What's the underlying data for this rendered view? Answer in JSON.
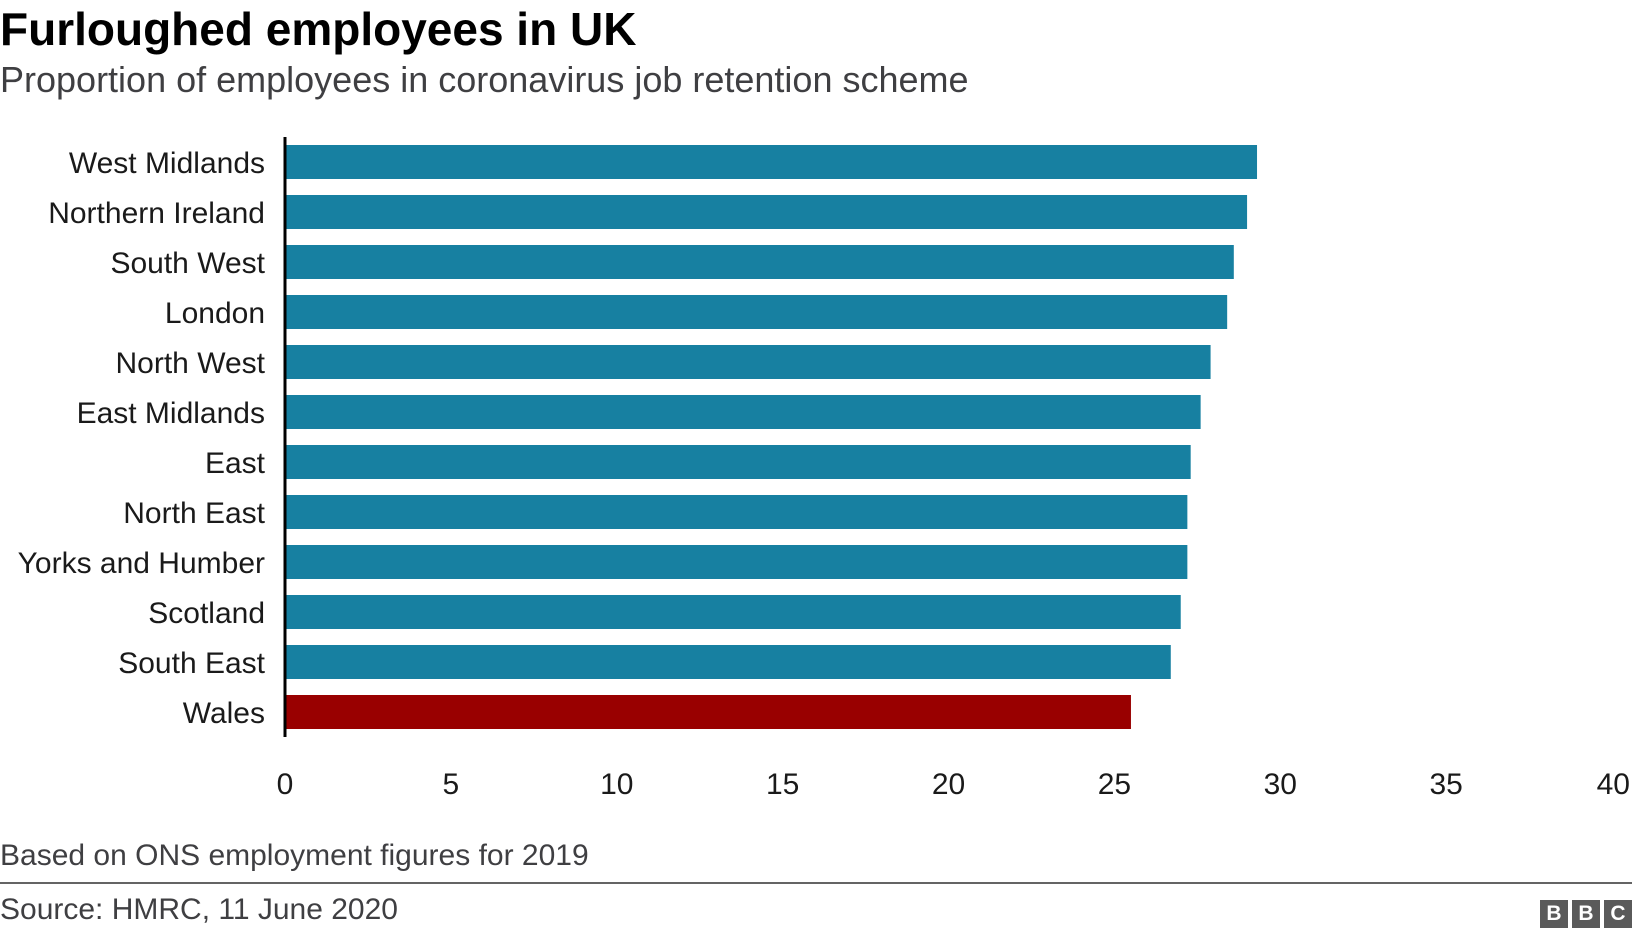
{
  "header": {
    "title": "Furloughed employees in UK",
    "subtitle": "Proportion of employees in coronavirus job retention scheme"
  },
  "footer": {
    "note": "Based on ONS employment figures for 2019",
    "source": "Source: HMRC, 11 June 2020",
    "logo_letters": [
      "B",
      "B",
      "C"
    ]
  },
  "colors": {
    "bar": "#1780a1",
    "highlight": "#990000",
    "axis": "#000000"
  },
  "chart_data": {
    "type": "bar",
    "orientation": "horizontal",
    "title": "Furloughed employees in UK",
    "subtitle": "Proportion of employees in coronavirus job retention scheme",
    "xlabel": "",
    "ylabel": "",
    "xlim": [
      0,
      40
    ],
    "ticks": [
      0,
      5,
      10,
      15,
      20,
      25,
      30,
      35,
      40
    ],
    "categories": [
      "West Midlands",
      "Northern Ireland",
      "South West",
      "London",
      "North West",
      "East Midlands",
      "East",
      "North East",
      "Yorks and Humber",
      "Scotland",
      "South East",
      "Wales"
    ],
    "values": [
      29.3,
      29.0,
      28.6,
      28.4,
      27.9,
      27.6,
      27.3,
      27.2,
      27.2,
      27.0,
      26.7,
      25.5
    ],
    "highlight": "Wales",
    "grid": false,
    "legend": "none"
  }
}
